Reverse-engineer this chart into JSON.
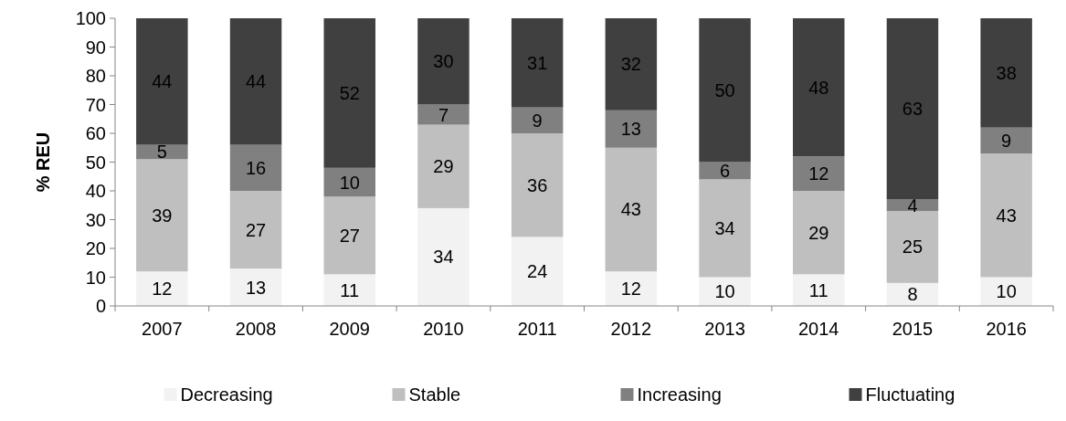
{
  "chart_data": {
    "type": "bar",
    "stacked": true,
    "ylabel": "% REU",
    "categories": [
      "2007",
      "2008",
      "2009",
      "2010",
      "2011",
      "2012",
      "2013",
      "2014",
      "2015",
      "2016"
    ],
    "series": [
      {
        "name": "Decreasing",
        "color": "#f2f2f2",
        "values": [
          12,
          13,
          11,
          34,
          24,
          12,
          10,
          11,
          8,
          10
        ]
      },
      {
        "name": "Stable",
        "color": "#bfbfbf",
        "values": [
          39,
          27,
          27,
          29,
          36,
          43,
          34,
          29,
          25,
          43
        ]
      },
      {
        "name": "Increasing",
        "color": "#808080",
        "values": [
          5,
          16,
          10,
          7,
          9,
          13,
          6,
          12,
          4,
          9
        ]
      },
      {
        "name": "Fluctuating",
        "color": "#404040",
        "values": [
          44,
          44,
          52,
          30,
          31,
          32,
          50,
          48,
          63,
          38
        ]
      }
    ],
    "ylim": [
      0,
      100
    ],
    "yticks": [
      0,
      10,
      20,
      30,
      40,
      50,
      60,
      70,
      80,
      90,
      100
    ],
    "grid": false,
    "legend": "bottom",
    "data_labels": true
  }
}
